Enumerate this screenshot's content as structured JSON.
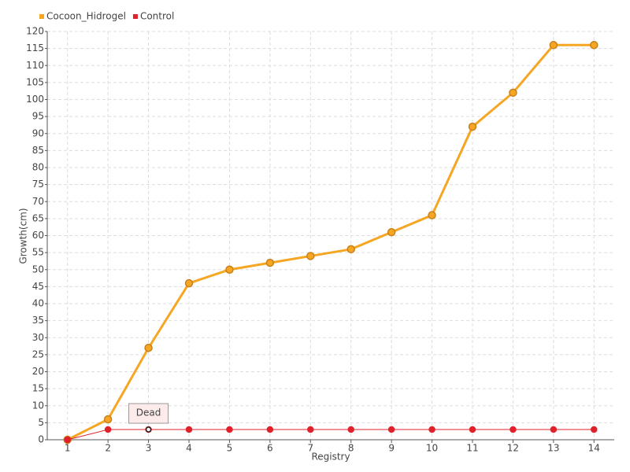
{
  "chart_data": {
    "type": "line",
    "xlabel": "Registry",
    "ylabel": "Growth(cm)",
    "categories": [
      "1",
      "2",
      "3",
      "4",
      "5",
      "6",
      "7",
      "8",
      "9",
      "10",
      "11",
      "12",
      "13",
      "14"
    ],
    "series": [
      {
        "name": "Cocoon_Hidrogel",
        "color": "#f5a623",
        "values": [
          0,
          6,
          27,
          46,
          50,
          52,
          54,
          56,
          61,
          66,
          92,
          102,
          116,
          116
        ]
      },
      {
        "name": "Control",
        "color": "#e0202a",
        "values": [
          0,
          3,
          3,
          3,
          3,
          3,
          3,
          3,
          3,
          3,
          3,
          3,
          3,
          3
        ]
      }
    ],
    "annotations": [
      {
        "text": "Dead",
        "category": "3"
      }
    ],
    "ylim": [
      0,
      120
    ],
    "yticks": [
      0,
      5,
      10,
      15,
      20,
      25,
      30,
      35,
      40,
      45,
      50,
      55,
      60,
      65,
      70,
      75,
      80,
      85,
      90,
      95,
      100,
      105,
      110,
      115,
      120
    ],
    "grid": true,
    "legend": "top-left"
  }
}
